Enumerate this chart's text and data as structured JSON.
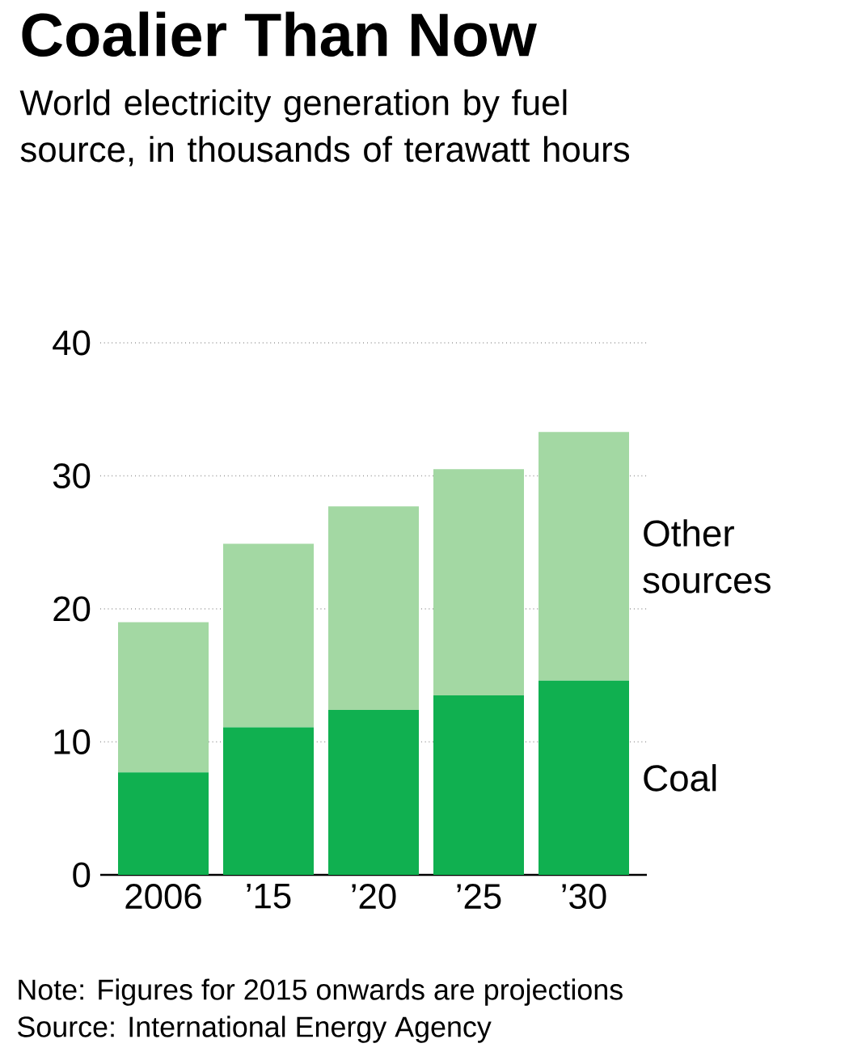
{
  "chart_data": {
    "type": "bar",
    "title": "Coalier Than Now",
    "subtitle": "World electricity generation by fuel source, in thousands of terawatt hours",
    "categories": [
      "2006",
      "’15",
      "’20",
      "’25",
      "’30"
    ],
    "stacked": true,
    "series": [
      {
        "name": "Coal",
        "color": "#10b050",
        "values": [
          7.7,
          11.1,
          12.4,
          13.5,
          14.6
        ]
      },
      {
        "name": "Other sources",
        "color": "#a3d8a3",
        "values": [
          11.3,
          13.8,
          15.3,
          17.0,
          18.7
        ]
      }
    ],
    "ylim": [
      0,
      40
    ],
    "yticks": [
      0,
      10,
      20,
      30,
      40
    ],
    "grid": "y",
    "annotations": [
      "Note: Figures for 2015 onwards are projections",
      "Source: International Energy Agency"
    ]
  }
}
